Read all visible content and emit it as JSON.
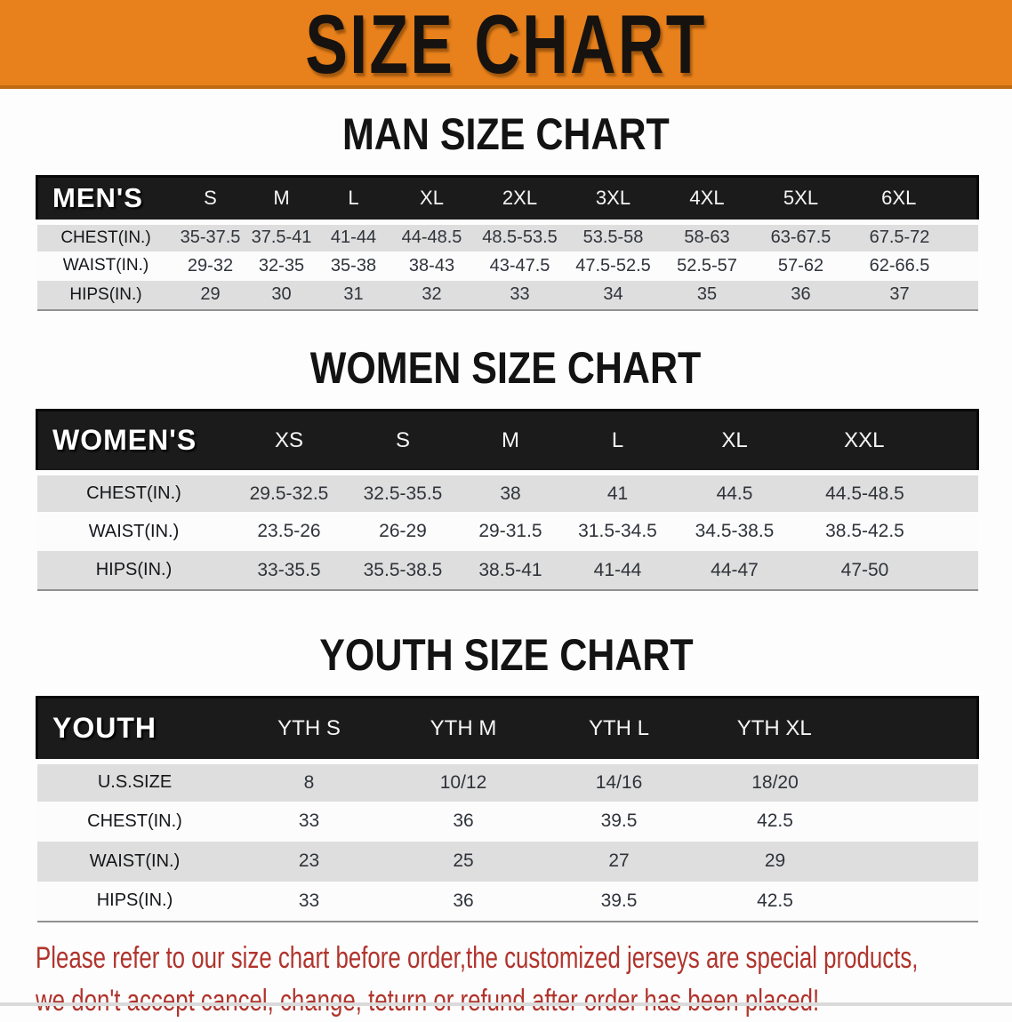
{
  "banner": {
    "title": "SIZE CHART",
    "bg_color": "#E8811B",
    "text_color": "#161210"
  },
  "sections": {
    "men": {
      "title": "MAN SIZE CHART",
      "table": {
        "corner": "MEN'S",
        "sizes": [
          "S",
          "M",
          "L",
          "XL",
          "2XL",
          "3XL",
          "4XL",
          "5XL",
          "6XL"
        ],
        "rows": [
          {
            "label": "CHEST(IN.)",
            "values": [
              "35-37.5",
              "37.5-41",
              "41-44",
              "44-48.5",
              "48.5-53.5",
              "53.5-58",
              "58-63",
              "63-67.5",
              "67.5-72"
            ]
          },
          {
            "label": "WAIST(IN.)",
            "values": [
              "29-32",
              "32-35",
              "35-38",
              "38-43",
              "43-47.5",
              "47.5-52.5",
              "52.5-57",
              "57-62",
              "62-66.5"
            ]
          },
          {
            "label": "HIPS(IN.)",
            "values": [
              "29",
              "30",
              "31",
              "32",
              "33",
              "34",
              "35",
              "36",
              "37"
            ]
          }
        ]
      }
    },
    "women": {
      "title": "WOMEN SIZE CHART",
      "table": {
        "corner": "WOMEN'S",
        "sizes": [
          "XS",
          "S",
          "M",
          "L",
          "XL",
          "XXL"
        ],
        "rows": [
          {
            "label": "CHEST(IN.)",
            "values": [
              "29.5-32.5",
              "32.5-35.5",
              "38",
              "41",
              "44.5",
              "44.5-48.5"
            ]
          },
          {
            "label": "WAIST(IN.)",
            "values": [
              "23.5-26",
              "26-29",
              "29-31.5",
              "31.5-34.5",
              "34.5-38.5",
              "38.5-42.5"
            ]
          },
          {
            "label": "HIPS(IN.)",
            "values": [
              "33-35.5",
              "35.5-38.5",
              "38.5-41",
              "41-44",
              "44-47",
              "47-50"
            ]
          }
        ]
      }
    },
    "youth": {
      "title": "YOUTH SIZE CHART",
      "table": {
        "corner": "YOUTH",
        "sizes": [
          "YTH S",
          "YTH M",
          "YTH L",
          "YTH XL"
        ],
        "rows": [
          {
            "label": "U.S.SIZE",
            "values": [
              "8",
              "10/12",
              "14/16",
              "18/20"
            ]
          },
          {
            "label": "CHEST(IN.)",
            "values": [
              "33",
              "36",
              "39.5",
              "42.5"
            ]
          },
          {
            "label": "WAIST(IN.)",
            "values": [
              "23",
              "25",
              "27",
              "29"
            ]
          },
          {
            "label": "HIPS(IN.)",
            "values": [
              "33",
              "36",
              "39.5",
              "42.5"
            ]
          }
        ]
      }
    }
  },
  "table_style": {
    "header_band_color": "#1C1B1B",
    "stripe_color": "#DEDEDE",
    "white_stripe_color": "#FCFCFD"
  },
  "disclaimer": {
    "color": "#B0342C",
    "lines": [
      "Please refer to our size chart before order,the customized jerseys are special products,",
      "we don't accept cancel, change, teturn or refund after order has been placed!"
    ]
  }
}
